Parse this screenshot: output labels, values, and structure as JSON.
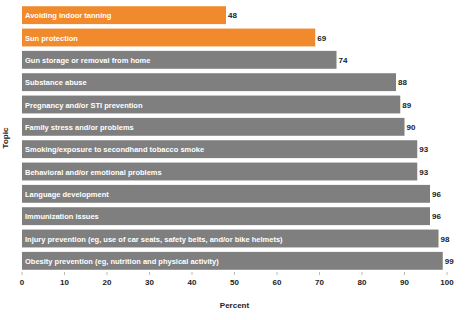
{
  "chart_data": {
    "type": "bar",
    "orientation": "horizontal",
    "categories": [
      "Avoiding indoor tanning",
      "Sun protection",
      "Gun storage or removal from home",
      "Substance abuse",
      "Pregnancy and/or STI prevention",
      "Family stress and/or problems",
      "Smoking/exposure to secondhand tobacco smoke",
      "Behavioral and/or emotional problems",
      "Language development",
      "Immunization issues",
      "Injury prevention (eg, use of car seats, safety belts, and/or bike helmets)",
      "Obesity prevention (eg, nutrition and physical activity)"
    ],
    "values": [
      48,
      69,
      74,
      88,
      89,
      90,
      93,
      93,
      96,
      96,
      98,
      99
    ],
    "colors": [
      "#f08a2c",
      "#f08a2c",
      "#7f7f7f",
      "#7f7f7f",
      "#7f7f7f",
      "#7f7f7f",
      "#7f7f7f",
      "#7f7f7f",
      "#7f7f7f",
      "#7f7f7f",
      "#7f7f7f",
      "#7f7f7f"
    ],
    "x_label": "Percent",
    "y_label": "Topic",
    "xlim": [
      0,
      100
    ],
    "xticks": [
      0,
      10,
      20,
      30,
      40,
      50,
      60,
      70,
      80,
      90,
      100
    ],
    "grid": false,
    "data_labels": true
  }
}
